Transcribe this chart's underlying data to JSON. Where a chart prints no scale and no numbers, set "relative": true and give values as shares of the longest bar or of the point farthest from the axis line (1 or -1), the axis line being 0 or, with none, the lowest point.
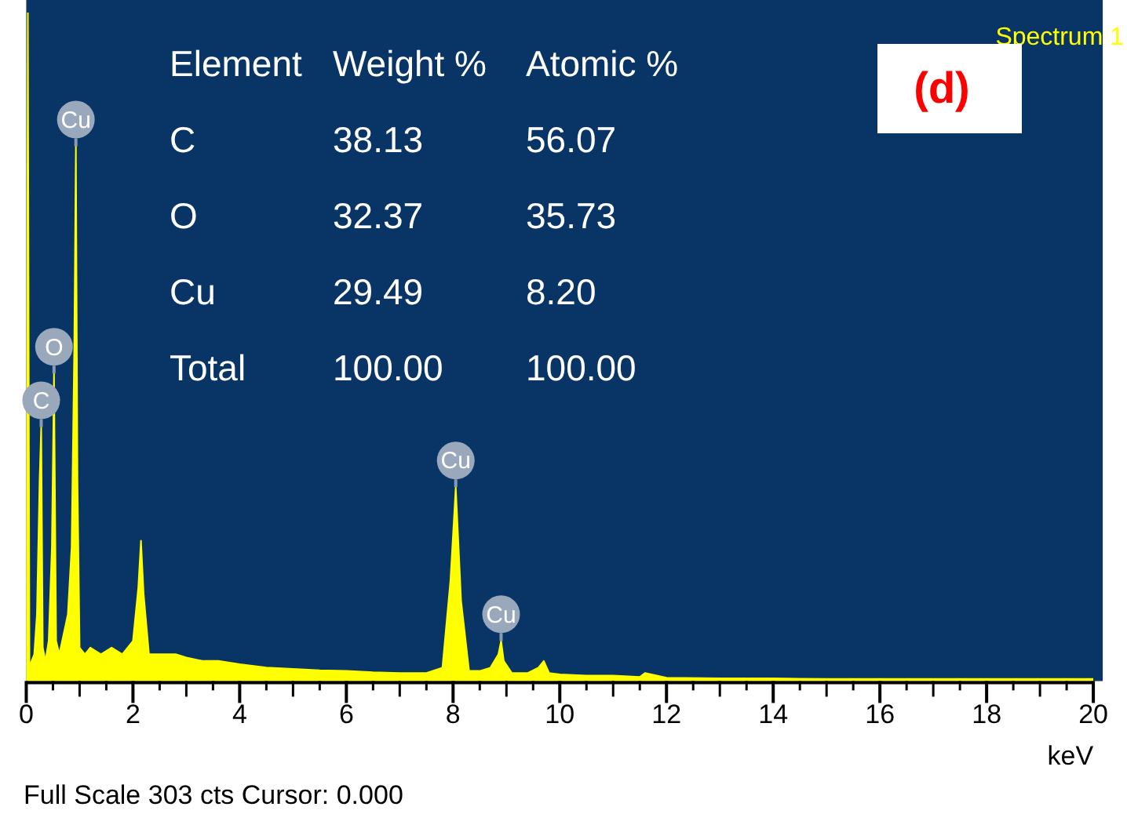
{
  "chart_data": {
    "type": "area",
    "relative": true,
    "xlabel": "keV",
    "x": [
      0,
      0.03,
      0.06,
      0.1,
      0.15,
      0.2,
      0.25,
      0.28,
      0.31,
      0.36,
      0.42,
      0.48,
      0.52,
      0.56,
      0.62,
      0.7,
      0.78,
      0.85,
      0.9,
      0.93,
      0.96,
      1.0,
      1.1,
      1.2,
      1.4,
      1.6,
      1.8,
      2.0,
      2.1,
      2.15,
      2.2,
      2.3,
      2.5,
      2.8,
      3.0,
      3.3,
      3.6,
      4.0,
      4.5,
      5.0,
      5.5,
      6.0,
      6.5,
      7.0,
      7.5,
      7.8,
      7.95,
      8.05,
      8.15,
      8.3,
      8.5,
      8.7,
      8.85,
      8.9,
      8.95,
      9.1,
      9.4,
      9.6,
      9.7,
      9.8,
      10.0,
      10.5,
      11.0,
      11.5,
      11.6,
      12.0,
      13,
      14,
      15,
      16,
      17,
      18,
      19,
      20
    ],
    "series": [
      {
        "color": "#ffff00",
        "values": [
          0,
          1.0,
          0.02,
          0.03,
          0.04,
          0.1,
          0.3,
          0.38,
          0.05,
          0.03,
          0.06,
          0.2,
          0.46,
          0.06,
          0.04,
          0.07,
          0.1,
          0.2,
          0.5,
          0.8,
          0.3,
          0.05,
          0.04,
          0.05,
          0.04,
          0.05,
          0.04,
          0.06,
          0.14,
          0.21,
          0.13,
          0.04,
          0.04,
          0.04,
          0.035,
          0.03,
          0.03,
          0.025,
          0.02,
          0.018,
          0.016,
          0.015,
          0.013,
          0.012,
          0.012,
          0.02,
          0.15,
          0.29,
          0.12,
          0.015,
          0.015,
          0.02,
          0.04,
          0.06,
          0.03,
          0.012,
          0.012,
          0.02,
          0.03,
          0.012,
          0.01,
          0.008,
          0.008,
          0.006,
          0.012,
          0.005,
          0.004,
          0.004,
          0.003,
          0.003,
          0.003,
          0.003,
          0.003,
          0.003
        ]
      }
    ],
    "xlim": [
      0,
      20
    ],
    "xticks": [
      0,
      {
        "value": 0.5,
        "label": null
      },
      {
        "value": 1,
        "label": null
      },
      {
        "value": 1.5,
        "label": null
      },
      2,
      {
        "value": 2.5,
        "label": null
      },
      {
        "value": 3,
        "label": null
      },
      {
        "value": 3.5,
        "label": null
      },
      4,
      {
        "value": 4.5,
        "label": null
      },
      {
        "value": 5,
        "label": null
      },
      {
        "value": 5.5,
        "label": null
      },
      6,
      {
        "value": 6.5,
        "label": null
      },
      {
        "value": 7,
        "label": null
      },
      {
        "value": 7.5,
        "label": null
      },
      8,
      {
        "value": 8.5,
        "label": null
      },
      {
        "value": 9,
        "label": null
      },
      {
        "value": 9.5,
        "label": null
      },
      10,
      {
        "value": 10.5,
        "label": null
      },
      {
        "value": 11,
        "label": null
      },
      {
        "value": 11.5,
        "label": null
      },
      12,
      {
        "value": 12.5,
        "label": null
      },
      {
        "value": 13,
        "label": null
      },
      {
        "value": 13.5,
        "label": null
      },
      14,
      {
        "value": 14.5,
        "label": null
      },
      {
        "value": 15,
        "label": null
      },
      {
        "value": 15.5,
        "label": null
      },
      16,
      {
        "value": 16.5,
        "label": null
      },
      {
        "value": 17,
        "label": null
      },
      {
        "value": 17.5,
        "label": null
      },
      18,
      {
        "value": 18.5,
        "label": null
      },
      {
        "value": 19,
        "label": null
      },
      {
        "value": 19.5,
        "label": null
      },
      20
    ],
    "tick_labels": "x",
    "grid": false,
    "legend": false,
    "marker": "none",
    "annotations": [
      "Element",
      "Weight %",
      "Atomic %",
      "C",
      "38.13",
      "56.07",
      "O",
      "32.37",
      "35.73",
      "Cu",
      "29.49",
      "8.20",
      "Total",
      "100.00",
      "100.00",
      "Spectrum 1",
      "(d)",
      "Full Scale 303 cts Cursor: 0.000",
      {
        "text": "C",
        "x": 0.28,
        "y": 0.38
      },
      {
        "text": "O",
        "x": 0.52,
        "y": 0.46
      },
      {
        "text": "Cu",
        "x": 0.93,
        "y": 0.8
      },
      {
        "text": "Cu",
        "x": 8.05,
        "y": 0.29
      },
      {
        "text": "Cu",
        "x": 8.9,
        "y": 0.06
      }
    ]
  }
}
